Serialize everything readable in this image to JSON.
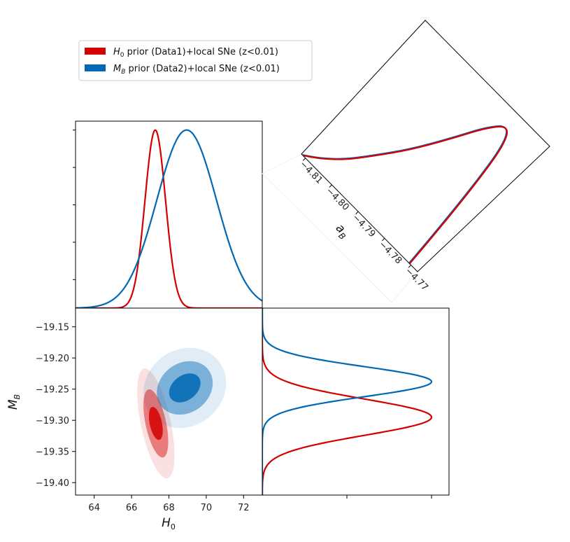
{
  "colors": {
    "red": "#d50000",
    "blue": "#0068b4"
  },
  "legend": {
    "entries": [
      {
        "color_key": "red",
        "math": "H",
        "sub": "0",
        "text": " prior (Data1)+local SNe (z<0.01)"
      },
      {
        "color_key": "blue",
        "math": "M",
        "sub": "B",
        "text": " prior (Data2)+local SNe (z<0.01)"
      }
    ]
  },
  "chart_data": [
    {
      "type": "line",
      "panel": "H0 marginal posterior",
      "xlim": [
        63,
        73
      ],
      "ylim": [
        0,
        1.05
      ],
      "ytick_count": 5,
      "series": [
        {
          "name": "H0 prior (Data1)+local SNe (z<0.01)",
          "color_key": "red",
          "shape": "gaussian",
          "mean": 67.27,
          "sigma": 0.55,
          "peak": 1.0
        },
        {
          "name": "MB prior (Data2)+local SNe (z<0.01)",
          "color_key": "blue",
          "shape": "gaussian",
          "mean": 68.95,
          "sigma": 1.6,
          "peak": 1.0
        }
      ]
    },
    {
      "type": "contour",
      "panel": "H0 vs MB",
      "xlabel": "H0",
      "ylabel": "MB",
      "xlim": [
        63,
        73
      ],
      "ylim": [
        -19.42,
        -19.12
      ],
      "xticks": [
        64,
        66,
        68,
        70,
        72
      ],
      "xtick_labels": [
        "64",
        "66",
        "68",
        "70",
        "72"
      ],
      "yticks": [
        -19.15,
        -19.2,
        -19.25,
        -19.3,
        -19.35,
        -19.4
      ],
      "ytick_labels": [
        "−19.15",
        "−19.20",
        "−19.25",
        "−19.30",
        "−19.35",
        "−19.40"
      ],
      "series": [
        {
          "name": "H0 prior (Data1)+local SNe (z<0.01)",
          "color_key": "red",
          "center": [
            67.3,
            -19.305
          ],
          "levels": [
            {
              "sigma": 1,
              "semi_axes": [
                0.6,
                0.03
              ],
              "angle_deg": 12,
              "opacity": 0.85
            },
            {
              "sigma": 2,
              "semi_axes": [
                1.0,
                0.062
              ],
              "angle_deg": 12,
              "opacity": 0.45
            },
            {
              "sigma": 3,
              "semi_axes": [
                1.45,
                0.1
              ],
              "angle_deg": 12,
              "opacity": 0.12
            }
          ]
        },
        {
          "name": "MB prior (Data2)+local SNe (z<0.01)",
          "color_key": "blue",
          "center": [
            68.85,
            -19.248
          ],
          "levels": [
            {
              "sigma": 1,
              "semi_axes": [
                1.7,
                0.022
              ],
              "angle_deg": 38,
              "opacity": 0.85
            },
            {
              "sigma": 2,
              "semi_axes": [
                2.9,
                0.044
              ],
              "angle_deg": 38,
              "opacity": 0.45
            },
            {
              "sigma": 3,
              "semi_axes": [
                4.2,
                0.068
              ],
              "angle_deg": 38,
              "opacity": 0.12
            }
          ]
        }
      ]
    },
    {
      "type": "line",
      "panel": "MB marginal posterior (rotated)",
      "xlim": [
        -19.42,
        -19.12
      ],
      "tick_count": 2,
      "series": [
        {
          "name": "H0 prior (Data1)+local SNe (z<0.01)",
          "color_key": "red",
          "shape": "gaussian",
          "mean": -19.295,
          "sigma": 0.029,
          "peak": 1.0
        },
        {
          "name": "MB prior (Data2)+local SNe (z<0.01)",
          "color_key": "blue",
          "shape": "gaussian",
          "mean": -19.238,
          "sigma": 0.024,
          "peak": 1.0
        }
      ]
    },
    {
      "type": "line",
      "panel": "aB marginal posterior (rotated 45 deg)",
      "xlabel": "aB",
      "xlim": [
        -4.8115,
        -4.7675
      ],
      "xticks": [
        -4.81,
        -4.8,
        -4.79,
        -4.78,
        -4.77
      ],
      "xtick_labels": [
        "−4.81",
        "−4.80",
        "−4.79",
        "−4.78",
        "−4.77"
      ],
      "series": [
        {
          "name": "H0 prior (Data1)+local SNe (z<0.01)",
          "color_key": "red",
          "shape": "skewed",
          "x": [
            -4.811,
            -4.807,
            -4.802,
            -4.797,
            -4.791,
            -4.785,
            -4.78,
            -4.776,
            -4.7735,
            -4.772,
            -4.771,
            -4.7705
          ],
          "y": [
            0.0,
            0.06,
            0.16,
            0.3,
            0.48,
            0.7,
            0.9,
            1.0,
            0.9,
            0.6,
            0.25,
            0.0
          ]
        },
        {
          "name": "MB prior (Data2)+local SNe (z<0.01)",
          "color_key": "blue",
          "shape": "skewed",
          "x": [
            -4.8112,
            -4.8072,
            -4.8022,
            -4.7972,
            -4.7912,
            -4.7852,
            -4.7802,
            -4.7762,
            -4.7737,
            -4.7722,
            -4.7712,
            -4.7707
          ],
          "y": [
            0.0,
            0.06,
            0.16,
            0.3,
            0.48,
            0.7,
            0.9,
            1.0,
            0.9,
            0.6,
            0.25,
            0.0
          ]
        }
      ]
    }
  ],
  "labels": {
    "h0_label_main": "H",
    "h0_label_sub": "0",
    "mb_label_main": "M",
    "mb_label_sub": "B",
    "ab_label_main": "a",
    "ab_label_sub": "B"
  }
}
